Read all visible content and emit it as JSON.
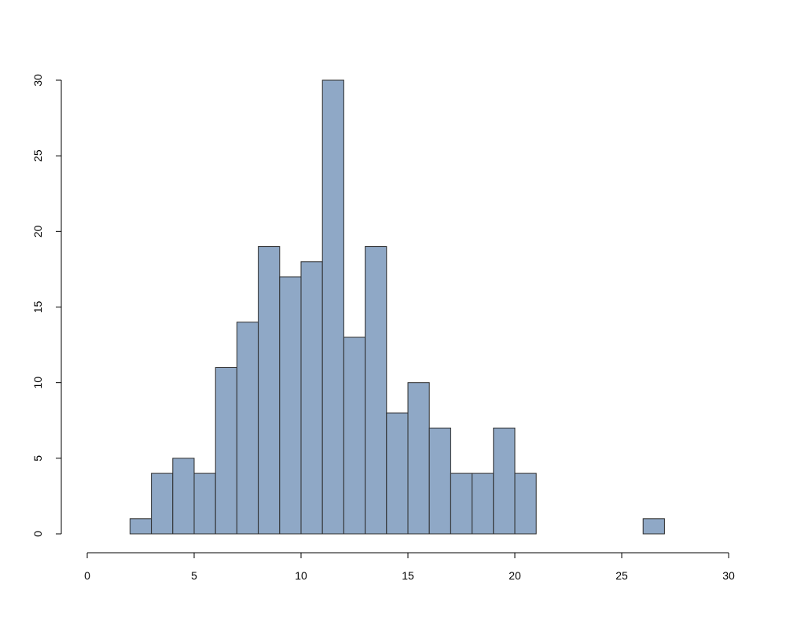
{
  "chart_data": {
    "type": "histogram",
    "bins": [
      2,
      3,
      4,
      5,
      6,
      7,
      8,
      9,
      10,
      11,
      12,
      13,
      14,
      15,
      16,
      17,
      18,
      19,
      20,
      21,
      22,
      23,
      24,
      25,
      26,
      27
    ],
    "counts": [
      1,
      4,
      5,
      4,
      11,
      14,
      19,
      17,
      18,
      30,
      13,
      19,
      8,
      10,
      7,
      4,
      4,
      7,
      4,
      0,
      0,
      0,
      0,
      0,
      1
    ],
    "color": "#8fa8c6",
    "xlim": [
      0,
      30
    ],
    "xticks": [
      0,
      5,
      10,
      15,
      20,
      25,
      30
    ],
    "ylim": [
      0,
      30
    ],
    "yticks": [
      0,
      5,
      10,
      15,
      20,
      25,
      30
    ]
  }
}
